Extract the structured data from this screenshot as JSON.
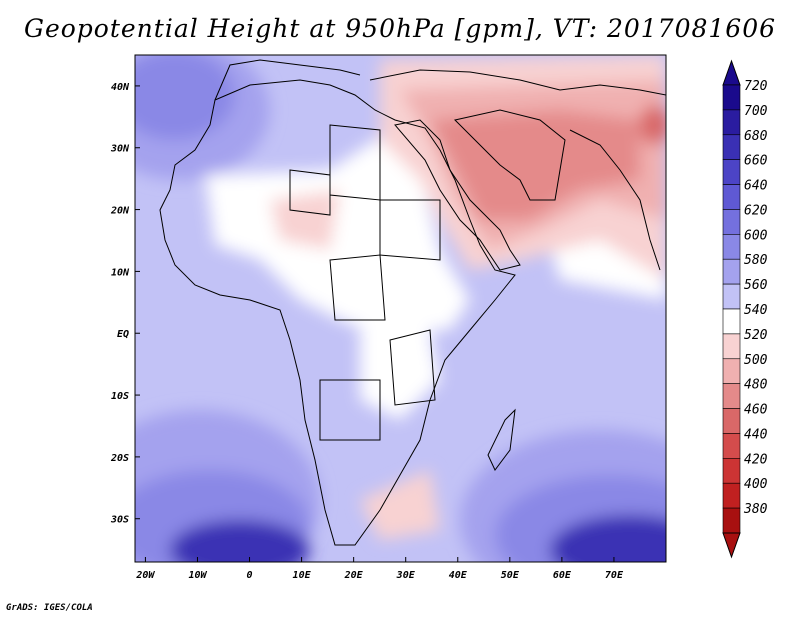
{
  "title": "Geopotential Height at 950hPa [gpm], VT: 2017081606",
  "credit": "GrADS: IGES/COLA",
  "map": {
    "lon_range": [
      -22,
      80
    ],
    "lat_range": [
      -37,
      45
    ],
    "lat_ticks": [
      {
        "value": 40,
        "label": "40N"
      },
      {
        "value": 30,
        "label": "30N"
      },
      {
        "value": 20,
        "label": "20N"
      },
      {
        "value": 10,
        "label": "10N"
      },
      {
        "value": 0,
        "label": "EQ"
      },
      {
        "value": -10,
        "label": "10S"
      },
      {
        "value": -20,
        "label": "20S"
      },
      {
        "value": -30,
        "label": "30S"
      }
    ],
    "lon_ticks": [
      {
        "value": -20,
        "label": "20W"
      },
      {
        "value": -10,
        "label": "10W"
      },
      {
        "value": 0,
        "label": "0"
      },
      {
        "value": 10,
        "label": "10E"
      },
      {
        "value": 20,
        "label": "20E"
      },
      {
        "value": 30,
        "label": "30E"
      },
      {
        "value": 40,
        "label": "40E"
      },
      {
        "value": 50,
        "label": "50E"
      },
      {
        "value": 60,
        "label": "60E"
      },
      {
        "value": 70,
        "label": "70E"
      }
    ]
  },
  "colorbar": {
    "levels": [
      {
        "label": "720",
        "color": "#1a0a8c"
      },
      {
        "label": "700",
        "color": "#2a1ca0"
      },
      {
        "label": "680",
        "color": "#3a30b4"
      },
      {
        "label": "660",
        "color": "#4c44c6"
      },
      {
        "label": "640",
        "color": "#5f59d4"
      },
      {
        "label": "620",
        "color": "#7470de"
      },
      {
        "label": "600",
        "color": "#8a88e6"
      },
      {
        "label": "580",
        "color": "#a4a2ee"
      },
      {
        "label": "560",
        "color": "#c2c2f6"
      },
      {
        "label": "540",
        "color": "#ffffff"
      },
      {
        "label": "520",
        "color": "#f8d2d2"
      },
      {
        "label": "500",
        "color": "#f0b0b0"
      },
      {
        "label": "480",
        "color": "#e48a8a"
      },
      {
        "label": "460",
        "color": "#d96868"
      },
      {
        "label": "440",
        "color": "#d44c4c"
      },
      {
        "label": "420",
        "color": "#cc3434"
      },
      {
        "label": "400",
        "color": "#c02020"
      },
      {
        "label": "380",
        "color": "#a81010"
      }
    ],
    "top_cap_color": "#1a0a8c",
    "bottom_cap_color": "#a81010"
  },
  "field_colors": {
    "background": "#c2c2f6",
    "deep_blue": "#3a30b4",
    "mid_blue": "#8a88e6",
    "light_blue": "#a4a2ee",
    "white": "#ffffff",
    "light_red": "#f8d2d2",
    "mid_red": "#f0b0b0",
    "dark_red": "#e48a8a",
    "strong_red": "#d96868"
  }
}
